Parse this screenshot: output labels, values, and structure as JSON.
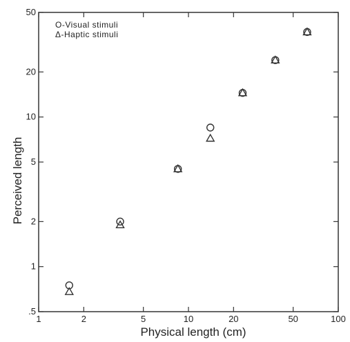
{
  "chart_data": {
    "type": "scatter",
    "title": "",
    "xlabel": "Physical  length (cm)",
    "ylabel": "Perceived  length",
    "x_scale": "log",
    "y_scale": "log",
    "xlim": [
      1,
      100
    ],
    "ylim": [
      0.5,
      50
    ],
    "x_ticks": [
      1,
      2,
      5,
      10,
      20,
      50,
      100
    ],
    "x_tick_labels": [
      "1",
      "2",
      "5",
      "10",
      "20",
      "50",
      "100"
    ],
    "y_ticks": [
      0.5,
      1,
      2,
      5,
      10,
      20,
      50
    ],
    "y_tick_labels": [
      ".5",
      "1",
      "2",
      "5",
      "10",
      "20",
      "50"
    ],
    "grid": false,
    "legend_position": "top-left",
    "series": [
      {
        "name": "O-Visual stimuli",
        "marker": "circle",
        "points": [
          {
            "x": 1.6,
            "y": 0.75
          },
          {
            "x": 3.5,
            "y": 2.0
          },
          {
            "x": 8.5,
            "y": 4.5
          },
          {
            "x": 14.0,
            "y": 8.5
          },
          {
            "x": 23.0,
            "y": 14.5
          },
          {
            "x": 38.0,
            "y": 24.0
          },
          {
            "x": 62.0,
            "y": 37.0
          }
        ]
      },
      {
        "name": "Δ-Haptic stimuli",
        "marker": "triangle",
        "points": [
          {
            "x": 1.6,
            "y": 0.68
          },
          {
            "x": 3.5,
            "y": 1.9
          },
          {
            "x": 8.5,
            "y": 4.5
          },
          {
            "x": 14.0,
            "y": 7.2
          },
          {
            "x": 23.0,
            "y": 14.5
          },
          {
            "x": 38.0,
            "y": 24.0
          },
          {
            "x": 62.0,
            "y": 37.0
          }
        ]
      }
    ]
  }
}
